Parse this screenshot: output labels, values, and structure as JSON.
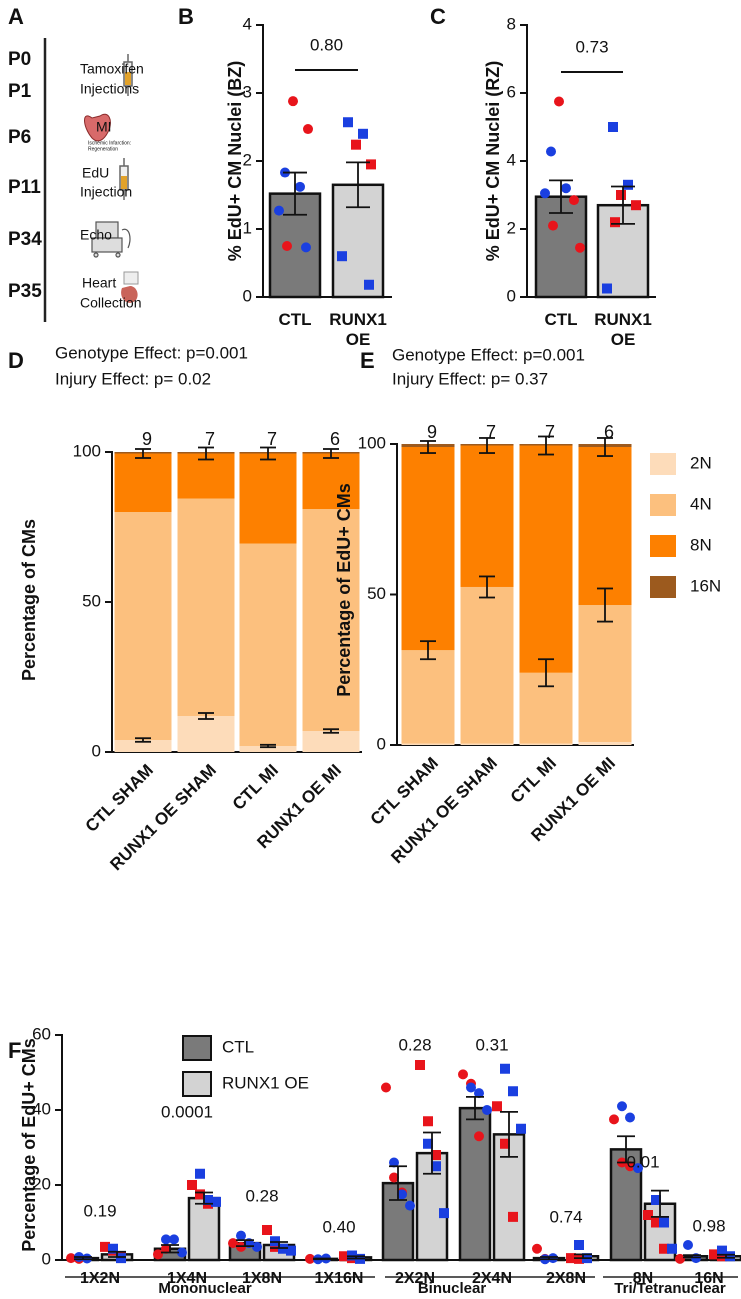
{
  "panel_letters": [
    "A",
    "B",
    "C",
    "D",
    "E",
    "F"
  ],
  "timeline": {
    "days": [
      "P0",
      "P1",
      "P6",
      "P11",
      "P34",
      "P35"
    ],
    "steps": [
      [
        "Tamoxifen",
        "Injections"
      ],
      [
        "MI"
      ],
      [
        "Ischemic Infarction:",
        "Regeneration"
      ],
      [
        "EdU",
        "Injection"
      ],
      [
        "Echo"
      ],
      [
        "Heart",
        "Collection"
      ]
    ]
  },
  "chart_data": [
    {
      "type": "bar",
      "ylabel": "% EdU+ CM Nuclei (BZ)",
      "categories": [
        "CTL",
        "RUNX1 OE"
      ],
      "values": [
        1.52,
        1.65
      ],
      "errors": [
        0.31,
        0.33
      ],
      "colors": [
        "#7a7a7a",
        "#d3d3d3"
      ],
      "markers": [
        "circle",
        "square"
      ],
      "ylim": [
        0,
        4
      ],
      "yticks": [
        0,
        1,
        2,
        3,
        4
      ],
      "p_value": "0.80",
      "point_sets": [
        {
          "color": "#e8141b",
          "values": [
            [
              2.88,
              2.47,
              0.75
            ],
            [
              2.24,
              1.95
            ]
          ]
        },
        {
          "color": "#1a3fe0",
          "values": [
            [
              1.83,
              1.62,
              1.27,
              0.73
            ],
            [
              2.57,
              2.4,
              0.6,
              0.18
            ]
          ]
        }
      ]
    },
    {
      "type": "bar",
      "ylabel": "% EdU+ CM Nuclei (RZ)",
      "categories": [
        "CTL",
        "RUNX1 OE"
      ],
      "values": [
        2.95,
        2.7
      ],
      "errors": [
        0.48,
        0.55
      ],
      "colors": [
        "#7a7a7a",
        "#d3d3d3"
      ],
      "markers": [
        "circle",
        "square"
      ],
      "ylim": [
        0,
        8
      ],
      "yticks": [
        0,
        2,
        4,
        6,
        8
      ],
      "p_value": "0.73",
      "point_sets": [
        {
          "color": "#e8141b",
          "values": [
            [
              5.75,
              2.85,
              2.1,
              1.45
            ],
            [
              3.0,
              2.7,
              2.2
            ]
          ]
        },
        {
          "color": "#1a3fe0",
          "values": [
            [
              4.28,
              3.2,
              3.05
            ],
            [
              5.0,
              3.3,
              0.25
            ]
          ]
        }
      ]
    },
    {
      "type": "stacked_bar",
      "ylabel": "Percentage of CMs",
      "annotations": [
        "Genotype Effect: p=0.001",
        "Injury Effect: p= 0.02"
      ],
      "categories": [
        "CTL SHAM",
        "RUNX1 OE SHAM",
        "CTL MI",
        "RUNX1 OE MI"
      ],
      "n": [
        9,
        7,
        7,
        6
      ],
      "ylim": [
        0,
        100
      ],
      "yticks": [
        0,
        50,
        100
      ],
      "legend": false,
      "series": [
        {
          "name": "2N",
          "color": "#fddcba",
          "values": [
            4,
            12,
            2,
            7
          ],
          "errors": [
            0.6,
            1,
            0.4,
            0.6
          ]
        },
        {
          "name": "4N",
          "color": "#fcc07e",
          "values": [
            76,
            72.5,
            67.5,
            74
          ]
        },
        {
          "name": "8N",
          "color": "#fd8000",
          "values": [
            19.5,
            15,
            30,
            18.5
          ],
          "errors": [
            1.5,
            2,
            2,
            1.5
          ]
        },
        {
          "name": "16N",
          "color": "#9c5a1e",
          "values": [
            0.5,
            0.5,
            0.5,
            0.5
          ]
        }
      ]
    },
    {
      "type": "stacked_bar",
      "ylabel": "Percentage of EdU+ CMs",
      "annotations": [
        "Genotype Effect: p=0.001",
        "Injury Effect: p= 0.37"
      ],
      "categories": [
        "CTL SHAM",
        "RUNX1 OE SHAM",
        "CTL MI",
        "RUNX1 OE MI"
      ],
      "n": [
        9,
        7,
        7,
        6
      ],
      "ylim": [
        0,
        100
      ],
      "yticks": [
        0,
        50,
        100
      ],
      "legend": true,
      "series": [
        {
          "name": "2N",
          "color": "#fddcba",
          "values": [
            0.5,
            0.5,
            0.5,
            1
          ]
        },
        {
          "name": "4N",
          "color": "#fcc07e",
          "values": [
            31,
            52,
            23.5,
            45.5
          ],
          "errors": [
            3,
            3.5,
            4.5,
            5.5
          ]
        },
        {
          "name": "8N",
          "color": "#fd8000",
          "values": [
            67.5,
            47,
            75.5,
            52.5
          ],
          "errors": [
            2,
            2.5,
            3,
            3
          ]
        },
        {
          "name": "16N",
          "color": "#9c5a1e",
          "values": [
            1,
            0.5,
            0.5,
            1
          ]
        }
      ]
    },
    {
      "type": "grouped_bar",
      "ylabel": "Percentage of EdU+ CMs",
      "categories": [
        "1X2N",
        "1X4N",
        "1X8N",
        "1X16N",
        "2X2N",
        "2X4N",
        "2X8N",
        "8N",
        "16N"
      ],
      "groups": [
        "Mononuclear",
        "Binuclear",
        "Tri/Tetranuclear"
      ],
      "p_values": [
        "0.19",
        "0.0001",
        "0.28",
        "0.40",
        "0.28",
        "0.31",
        "0.74",
        "0.01",
        "0.98"
      ],
      "ylim": [
        0,
        60
      ],
      "yticks": [
        0,
        20,
        40,
        60
      ],
      "legend": true,
      "series": [
        {
          "name": "CTL",
          "color": "#7a7a7a",
          "marker": "circle",
          "values": [
            0.5,
            3,
            4.5,
            0.3,
            20.5,
            40.5,
            0.5,
            29.5,
            1
          ],
          "errors": [
            0.3,
            1,
            0.8,
            0.1,
            4.5,
            3,
            0.3,
            3.5,
            0.3
          ],
          "point_sets": [
            {
              "color": "#e8141b",
              "values": [
                [
                  0.5,
                  0.3
                ],
                [
                  1.5,
                  3
                ],
                [
                  4.5,
                  3.5
                ],
                [
                  0.3
                ],
                [
                  46,
                  22,
                  18
                ],
                [
                  49.5,
                  47,
                  33
                ],
                [
                  3,
                  0.3
                ],
                [
                  37.5,
                  26,
                  25
                ],
                [
                  0.3
                ]
              ]
            },
            {
              "color": "#1a3fe0",
              "values": [
                [
                  0.8,
                  0.4
                ],
                [
                  5.5,
                  5.5,
                  2
                ],
                [
                  6.5,
                  4.5,
                  3.5
                ],
                [
                  0.2,
                  0.4
                ],
                [
                  26,
                  17.5,
                  14.5
                ],
                [
                  46,
                  44.5,
                  40
                ],
                [
                  0.2,
                  0.5
                ],
                [
                  41,
                  38,
                  24.5
                ],
                [
                  4,
                  0.5
                ]
              ]
            }
          ]
        },
        {
          "name": "RUNX1 OE",
          "color": "#d3d3d3",
          "marker": "square",
          "values": [
            1.5,
            16.5,
            4,
            0.7,
            28.5,
            33.5,
            1,
            15,
            1
          ],
          "errors": [
            0.7,
            1.5,
            0.8,
            0.3,
            5.5,
            6,
            0.5,
            3.5,
            0.4
          ],
          "point_sets": [
            {
              "color": "#e8141b",
              "values": [
                [
                  3.5,
                  2.5,
                  1
                ],
                [
                  20,
                  17.5,
                  15
                ],
                [
                  8,
                  3.5
                ],
                [
                  1,
                  0.5
                ],
                [
                  52,
                  37,
                  28
                ],
                [
                  41,
                  31,
                  11.5
                ],
                [
                  0.5,
                  0.3
                ],
                [
                  12,
                  10,
                  3
                ],
                [
                  1.5,
                  1
                ]
              ]
            },
            {
              "color": "#1a3fe0",
              "values": [
                [
                  3,
                  0.5
                ],
                [
                  23,
                  16,
                  15.5
                ],
                [
                  5,
                  3,
                  2.5
                ],
                [
                  1.2,
                  0.3
                ],
                [
                  31,
                  25,
                  12.5
                ],
                [
                  51,
                  45,
                  35
                ],
                [
                  4,
                  0.5
                ],
                [
                  16,
                  10,
                  3
                ],
                [
                  2.5,
                  1
                ]
              ]
            }
          ]
        }
      ]
    }
  ]
}
